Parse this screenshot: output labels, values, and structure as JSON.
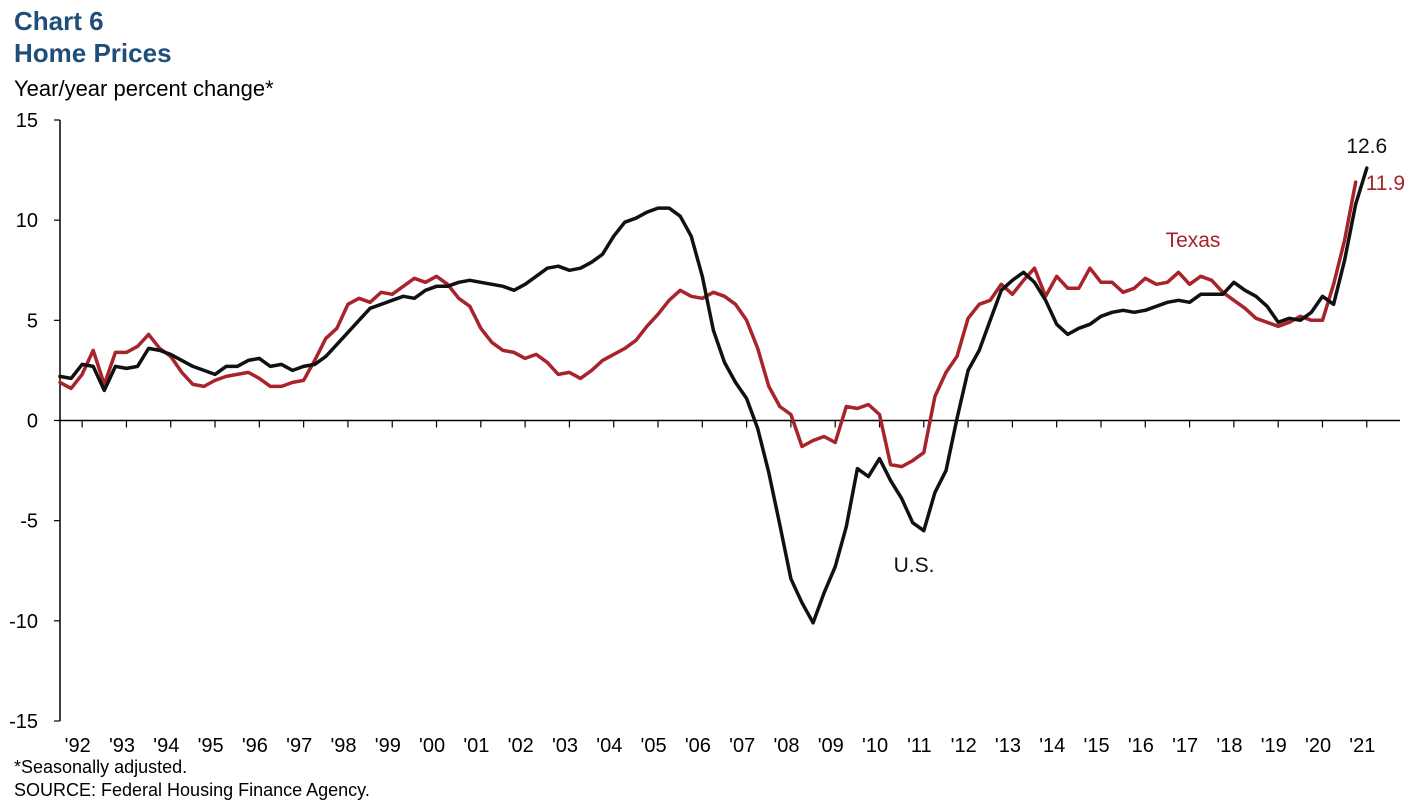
{
  "header": {
    "chart_number": "Chart 6",
    "title": "Home Prices",
    "ylabel": "Year/year percent change*"
  },
  "footer": {
    "footnote": "*Seasonally adjusted.",
    "source": "SOURCE: Federal Housing Finance Agency."
  },
  "chart_data": {
    "type": "line",
    "title": "Home Prices",
    "ylabel": "Year/year percent change*",
    "ylim": [
      -15,
      15
    ],
    "yticks": [
      -15,
      -10,
      -5,
      0,
      5,
      10,
      15
    ],
    "xlim": [
      1991.5,
      2021.75
    ],
    "xticks": [
      "'92",
      "'93",
      "'94",
      "'95",
      "'96",
      "'97",
      "'98",
      "'99",
      "'00",
      "'01",
      "'02",
      "'03",
      "'04",
      "'05",
      "'06",
      "'07",
      "'08",
      "'09",
      "'10",
      "'11",
      "'12",
      "'13",
      "'14",
      "'15",
      "'16",
      "'17",
      "'18",
      "'19",
      "'20",
      "'21"
    ],
    "grid": false,
    "legend": "inline labels",
    "colors": {
      "us": "#111111",
      "texas": "#a8232a"
    },
    "series": [
      {
        "name": "U.S.",
        "start": 1991.5,
        "step": 0.25,
        "end_label": "12.6",
        "values": [
          2.2,
          2.1,
          2.8,
          2.7,
          1.5,
          2.7,
          2.6,
          2.7,
          3.6,
          3.5,
          3.3,
          3.0,
          2.7,
          2.5,
          2.3,
          2.7,
          2.7,
          3.0,
          3.1,
          2.7,
          2.8,
          2.5,
          2.7,
          2.8,
          3.2,
          3.8,
          4.4,
          5.0,
          5.6,
          5.8,
          6.0,
          6.2,
          6.1,
          6.5,
          6.7,
          6.7,
          6.9,
          7.0,
          6.9,
          6.8,
          6.7,
          6.5,
          6.8,
          7.2,
          7.6,
          7.7,
          7.5,
          7.6,
          7.9,
          8.3,
          9.2,
          9.9,
          10.1,
          10.4,
          10.6,
          10.6,
          10.2,
          9.2,
          7.2,
          4.5,
          2.9,
          1.9,
          1.1,
          -0.4,
          -2.6,
          -5.2,
          -7.9,
          -9.1,
          -10.1,
          -8.6,
          -7.3,
          -5.3,
          -2.4,
          -2.8,
          -1.9,
          -3.0,
          -3.9,
          -5.1,
          -5.5,
          -3.6,
          -2.5,
          0.1,
          2.5,
          3.5,
          5.0,
          6.5,
          7.0,
          7.4,
          6.9,
          6.0,
          4.8,
          4.3,
          4.6,
          4.8,
          5.2,
          5.4,
          5.5,
          5.4,
          5.5,
          5.7,
          5.9,
          6.0,
          5.9,
          6.3,
          6.3,
          6.3,
          6.9,
          6.5,
          6.2,
          5.7,
          4.9,
          5.1,
          5.0,
          5.4,
          6.2,
          5.8,
          8.0,
          10.8,
          12.6
        ]
      },
      {
        "name": "Texas",
        "start": 1991.5,
        "step": 0.25,
        "end_label": "11.9",
        "values": [
          1.9,
          1.6,
          2.3,
          3.5,
          1.8,
          3.4,
          3.4,
          3.7,
          4.3,
          3.6,
          3.2,
          2.4,
          1.8,
          1.7,
          2.0,
          2.2,
          2.3,
          2.4,
          2.1,
          1.7,
          1.7,
          1.9,
          2.0,
          3.0,
          4.1,
          4.6,
          5.8,
          6.1,
          5.9,
          6.4,
          6.3,
          6.7,
          7.1,
          6.9,
          7.2,
          6.8,
          6.1,
          5.7,
          4.6,
          3.9,
          3.5,
          3.4,
          3.1,
          3.3,
          2.9,
          2.3,
          2.4,
          2.1,
          2.5,
          3.0,
          3.3,
          3.6,
          4.0,
          4.7,
          5.3,
          6.0,
          6.5,
          6.2,
          6.1,
          6.4,
          6.2,
          5.8,
          5.0,
          3.6,
          1.7,
          0.7,
          0.3,
          -1.3,
          -1.0,
          -0.8,
          -1.1,
          0.7,
          0.6,
          0.8,
          0.3,
          -2.2,
          -2.3,
          -2.0,
          -1.6,
          1.2,
          2.4,
          3.2,
          5.1,
          5.8,
          6.0,
          6.8,
          6.3,
          7.0,
          7.6,
          6.2,
          7.2,
          6.6,
          6.6,
          7.6,
          6.9,
          6.9,
          6.4,
          6.6,
          7.1,
          6.8,
          6.9,
          7.4,
          6.8,
          7.2,
          7.0,
          6.4,
          6.0,
          5.6,
          5.1,
          4.9,
          4.7,
          4.9,
          5.2,
          5.0,
          5.0,
          6.8,
          9.0,
          11.9
        ]
      }
    ]
  }
}
